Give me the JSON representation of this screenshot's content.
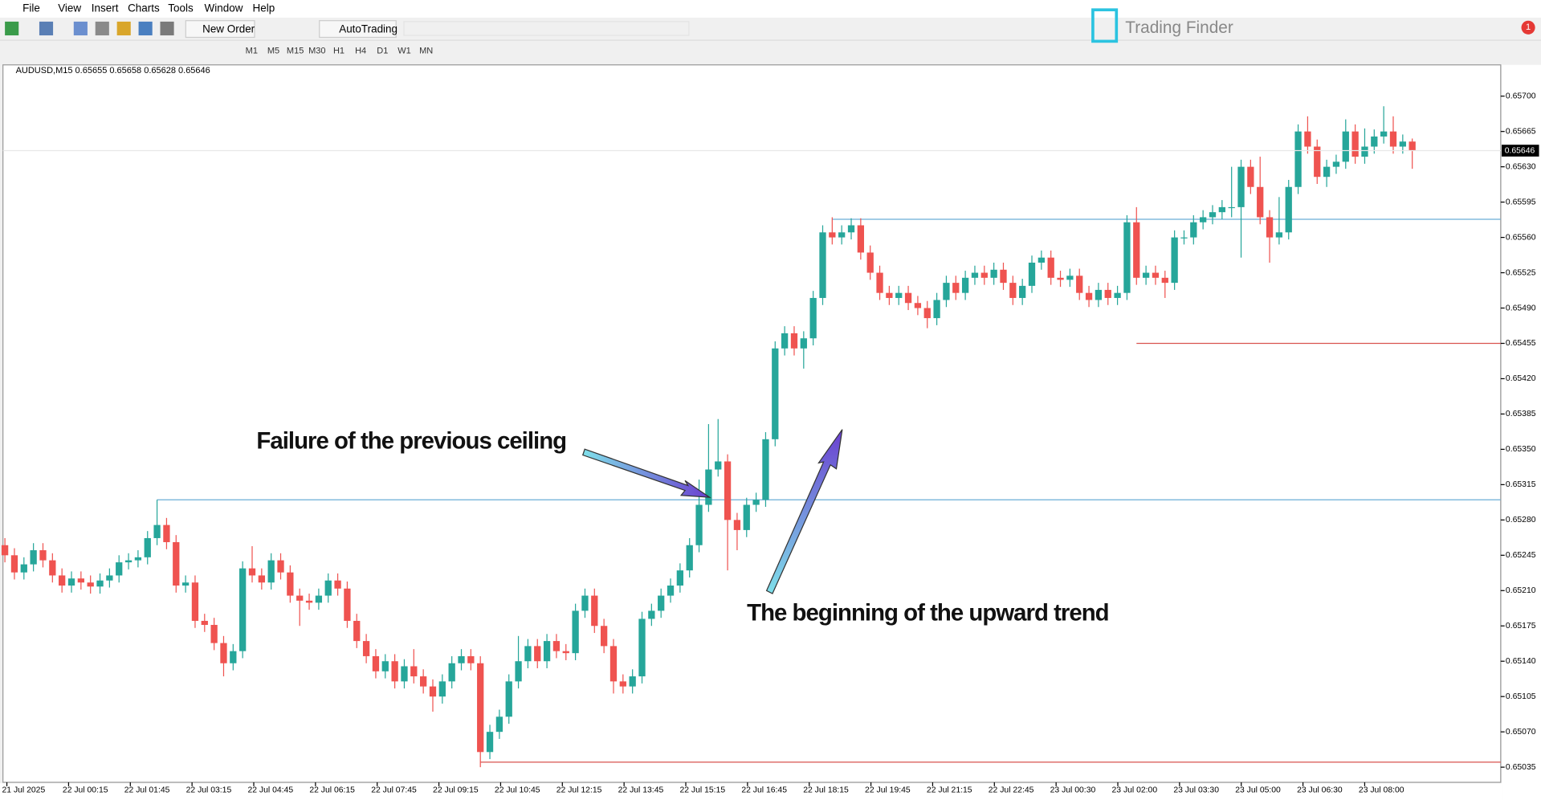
{
  "ui": {
    "menu": [
      "File",
      "View",
      "Insert",
      "Charts",
      "Tools",
      "Window",
      "Help"
    ],
    "toolbar": [
      "New Order",
      "AutoTrading"
    ],
    "timeframes": [
      "M1",
      "M5",
      "M15",
      "M30",
      "H1",
      "H4",
      "D1",
      "W1",
      "MN"
    ],
    "logo": "Trading Finder",
    "badge": "1"
  },
  "chart_data": {
    "type": "candlestick",
    "header": "AUDUSD,M15  0.65655 0.65658 0.65628 0.65646",
    "annotations": [
      "Failure of the previous ceiling",
      "The beginning of the upward trend"
    ],
    "colors": {
      "up": "#26a69a",
      "down": "#ef5350"
    },
    "open": [
      0.65255,
      0.65245,
      0.65228,
      0.65236,
      0.6525,
      0.6524,
      0.65225,
      0.65215,
      0.65222,
      0.65218,
      0.65214,
      0.6522,
      0.65225,
      0.65238,
      0.6524,
      0.65243,
      0.65262,
      0.65275,
      0.65258,
      0.65215,
      0.65218,
      0.6518,
      0.65176,
      0.65158,
      0.65138,
      0.6515,
      0.65232,
      0.65225,
      0.65218,
      0.6524,
      0.65228,
      0.65205,
      0.652,
      0.65198,
      0.65205,
      0.6522,
      0.65212,
      0.6518,
      0.6516,
      0.65145,
      0.6513,
      0.6514,
      0.6512,
      0.65135,
      0.65125,
      0.65115,
      0.65105,
      0.6512,
      0.65138,
      0.65145,
      0.65138,
      0.6505,
      0.6507,
      0.65085,
      0.6512,
      0.6514,
      0.65155,
      0.6514,
      0.6516,
      0.6515,
      0.65148,
      0.6519,
      0.65205,
      0.65175,
      0.65155,
      0.6512,
      0.65115,
      0.65125,
      0.65182,
      0.6519,
      0.65205,
      0.65215,
      0.6523,
      0.65255,
      0.65295,
      0.6533,
      0.65338,
      0.6528,
      0.6527,
      0.65295,
      0.653,
      0.6536,
      0.6545,
      0.65465,
      0.6545,
      0.6546,
      0.655,
      0.65565,
      0.6556,
      0.65565,
      0.65572,
      0.65545,
      0.65525,
      0.65505,
      0.655,
      0.65505,
      0.65495,
      0.6549,
      0.6548,
      0.65498,
      0.65515,
      0.65505,
      0.6552,
      0.65525,
      0.6552,
      0.65528,
      0.65515,
      0.655,
      0.65512,
      0.65535,
      0.6554,
      0.6552,
      0.65518,
      0.65522,
      0.65505,
      0.65498,
      0.65508,
      0.655,
      0.65505,
      0.65575,
      0.6552,
      0.65525,
      0.6552,
      0.65515,
      0.6556,
      0.6556,
      0.65575,
      0.6558,
      0.65585,
      0.6559,
      0.6559,
      0.6563,
      0.6561,
      0.6558,
      0.6556,
      0.65565,
      0.6561,
      0.65665,
      0.6565,
      0.6562,
      0.6563,
      0.65635,
      0.65665,
      0.6564,
      0.6565,
      0.6566,
      0.65665,
      0.6565,
      0.65655
    ],
    "high": [
      0.65262,
      0.65252,
      0.65243,
      0.65257,
      0.65257,
      0.65247,
      0.65232,
      0.65229,
      0.65229,
      0.65225,
      0.65227,
      0.65232,
      0.65245,
      0.65247,
      0.6525,
      0.65269,
      0.653,
      0.65282,
      0.65265,
      0.65225,
      0.65225,
      0.65187,
      0.65183,
      0.65165,
      0.65157,
      0.65239,
      0.65254,
      0.65232,
      0.65247,
      0.65247,
      0.65235,
      0.65212,
      0.65207,
      0.65212,
      0.65227,
      0.65227,
      0.65219,
      0.65187,
      0.65167,
      0.65152,
      0.65147,
      0.65147,
      0.65142,
      0.65152,
      0.65132,
      0.65122,
      0.65127,
      0.65145,
      0.65152,
      0.65152,
      0.65145,
      0.65077,
      0.65092,
      0.65127,
      0.65165,
      0.65162,
      0.65162,
      0.65167,
      0.65167,
      0.65157,
      0.65197,
      0.65212,
      0.65212,
      0.65182,
      0.65162,
      0.65127,
      0.65132,
      0.65189,
      0.65197,
      0.65212,
      0.65222,
      0.65237,
      0.65262,
      0.6532,
      0.65375,
      0.6538,
      0.65345,
      0.65287,
      0.65302,
      0.65307,
      0.65367,
      0.65457,
      0.65472,
      0.65472,
      0.65467,
      0.65507,
      0.65572,
      0.6558,
      0.65572,
      0.65579,
      0.65579,
      0.65552,
      0.65532,
      0.65512,
      0.65512,
      0.65512,
      0.65502,
      0.65497,
      0.65505,
      0.65522,
      0.65522,
      0.65527,
      0.65532,
      0.65532,
      0.65535,
      0.65535,
      0.65522,
      0.65519,
      0.65542,
      0.65547,
      0.65547,
      0.65527,
      0.65529,
      0.65529,
      0.65512,
      0.65515,
      0.65515,
      0.65512,
      0.65582,
      0.6559,
      0.65532,
      0.65532,
      0.65527,
      0.65567,
      0.65567,
      0.65582,
      0.65587,
      0.65592,
      0.65597,
      0.6563,
      0.65637,
      0.65637,
      0.6564,
      0.65587,
      0.656,
      0.65617,
      0.65672,
      0.6568,
      0.65657,
      0.65637,
      0.65642,
      0.65677,
      0.65672,
      0.65668,
      0.65667,
      0.6569,
      0.6568,
      0.65662,
      0.65658
    ],
    "low": [
      0.65238,
      0.65221,
      0.65221,
      0.65229,
      0.65233,
      0.65218,
      0.65208,
      0.65208,
      0.65211,
      0.65207,
      0.65207,
      0.65213,
      0.65218,
      0.65231,
      0.65233,
      0.65236,
      0.65255,
      0.65251,
      0.65208,
      0.65208,
      0.65173,
      0.65169,
      0.65151,
      0.65125,
      0.65131,
      0.65143,
      0.65218,
      0.65211,
      0.65211,
      0.65221,
      0.65198,
      0.65175,
      0.65191,
      0.65191,
      0.65198,
      0.65205,
      0.65173,
      0.65153,
      0.65138,
      0.65123,
      0.65123,
      0.65113,
      0.65113,
      0.65118,
      0.65108,
      0.6509,
      0.65098,
      0.65113,
      0.65131,
      0.65131,
      0.65035,
      0.65043,
      0.65063,
      0.65078,
      0.65113,
      0.65133,
      0.65133,
      0.65133,
      0.65143,
      0.65141,
      0.65141,
      0.65183,
      0.65168,
      0.65148,
      0.65108,
      0.65108,
      0.65108,
      0.65118,
      0.65175,
      0.65183,
      0.65198,
      0.65208,
      0.65223,
      0.65248,
      0.65288,
      0.65323,
      0.6523,
      0.6525,
      0.65263,
      0.65288,
      0.65293,
      0.65353,
      0.65443,
      0.65443,
      0.6543,
      0.65453,
      0.65493,
      0.65553,
      0.65553,
      0.65558,
      0.65538,
      0.65518,
      0.65498,
      0.65493,
      0.65493,
      0.65488,
      0.65483,
      0.6547,
      0.65473,
      0.65491,
      0.65498,
      0.65498,
      0.65513,
      0.65513,
      0.65513,
      0.65508,
      0.65493,
      0.65493,
      0.65505,
      0.65528,
      0.65513,
      0.65511,
      0.65511,
      0.65498,
      0.65491,
      0.65491,
      0.65493,
      0.65493,
      0.65498,
      0.65513,
      0.65513,
      0.65513,
      0.655,
      0.65508,
      0.65553,
      0.65553,
      0.65568,
      0.65573,
      0.65578,
      0.6558,
      0.6554,
      0.65603,
      0.65573,
      0.65535,
      0.65553,
      0.65558,
      0.65603,
      0.65643,
      0.65613,
      0.6561,
      0.65623,
      0.65628,
      0.65633,
      0.65633,
      0.65643,
      0.65653,
      0.65643,
      0.65643,
      0.65628
    ],
    "close": [
      0.65245,
      0.65228,
      0.65236,
      0.6525,
      0.6524,
      0.65225,
      0.65215,
      0.65222,
      0.65218,
      0.65214,
      0.6522,
      0.65225,
      0.65238,
      0.6524,
      0.65243,
      0.65262,
      0.65275,
      0.65258,
      0.65215,
      0.65218,
      0.6518,
      0.65176,
      0.65158,
      0.65138,
      0.6515,
      0.65232,
      0.65225,
      0.65218,
      0.6524,
      0.65228,
      0.65205,
      0.652,
      0.65198,
      0.65205,
      0.6522,
      0.65212,
      0.6518,
      0.6516,
      0.65145,
      0.6513,
      0.6514,
      0.6512,
      0.65135,
      0.65125,
      0.65115,
      0.65105,
      0.6512,
      0.65138,
      0.65145,
      0.65138,
      0.6505,
      0.6507,
      0.65085,
      0.6512,
      0.6514,
      0.65155,
      0.6514,
      0.6516,
      0.6515,
      0.65148,
      0.6519,
      0.65205,
      0.65175,
      0.65155,
      0.6512,
      0.65115,
      0.65125,
      0.65182,
      0.6519,
      0.65205,
      0.65215,
      0.6523,
      0.65255,
      0.65295,
      0.6533,
      0.65338,
      0.6528,
      0.6527,
      0.65295,
      0.653,
      0.6536,
      0.6545,
      0.65465,
      0.6545,
      0.6546,
      0.655,
      0.65565,
      0.6556,
      0.65565,
      0.65572,
      0.65545,
      0.65525,
      0.65505,
      0.655,
      0.65505,
      0.65495,
      0.6549,
      0.6548,
      0.65498,
      0.65515,
      0.65505,
      0.6552,
      0.65525,
      0.6552,
      0.65528,
      0.65515,
      0.655,
      0.65512,
      0.65535,
      0.6554,
      0.6552,
      0.65518,
      0.65522,
      0.65505,
      0.65498,
      0.65508,
      0.655,
      0.65505,
      0.65575,
      0.6552,
      0.65525,
      0.6552,
      0.65515,
      0.6556,
      0.6556,
      0.65575,
      0.6558,
      0.65585,
      0.6559,
      0.6559,
      0.6563,
      0.6561,
      0.6558,
      0.6556,
      0.65565,
      0.6561,
      0.65665,
      0.6565,
      0.6562,
      0.6563,
      0.65635,
      0.65665,
      0.6564,
      0.6565,
      0.6566,
      0.65665,
      0.6565,
      0.65655,
      0.65646
    ],
    "levels": [
      {
        "value": 0.653,
        "color": "#6aaed6",
        "start": 16
      },
      {
        "value": 0.65578,
        "color": "#6aaed6",
        "start": 87
      },
      {
        "value": 0.65455,
        "color": "#d9534f",
        "start": 119
      },
      {
        "value": 0.6504,
        "color": "#d9534f",
        "start": 50
      }
    ],
    "current_price": 0.65646,
    "current_price_label": "0.65646",
    "xticks": [
      "21 Jul 2025",
      "22 Jul 00:15",
      "22 Jul 01:45",
      "22 Jul 03:15",
      "22 Jul 04:45",
      "22 Jul 06:15",
      "22 Jul 07:45",
      "22 Jul 09:15",
      "22 Jul 10:45",
      "22 Jul 12:15",
      "22 Jul 13:45",
      "22 Jul 15:15",
      "22 Jul 16:45",
      "22 Jul 18:15",
      "22 Jul 19:45",
      "22 Jul 21:15",
      "22 Jul 22:45",
      "23 Jul 00:30",
      "23 Jul 02:00",
      "23 Jul 03:30",
      "23 Jul 05:00",
      "23 Jul 06:30",
      "23 Jul 08:00"
    ],
    "ylim": [
      0.6502,
      0.65731
    ],
    "yticks": [
      {
        "value": 0.657,
        "label": "0.65700"
      },
      {
        "value": 0.65665,
        "label": "0.65665"
      },
      {
        "value": 0.6563,
        "label": "0.65630"
      },
      {
        "value": 0.65595,
        "label": "0.65595"
      },
      {
        "value": 0.6556,
        "label": "0.65560"
      },
      {
        "value": 0.65525,
        "label": "0.65525"
      },
      {
        "value": 0.6549,
        "label": "0.65490"
      },
      {
        "value": 0.65455,
        "label": "0.65455"
      },
      {
        "value": 0.6542,
        "label": "0.65420"
      },
      {
        "value": 0.65385,
        "label": "0.65385"
      },
      {
        "value": 0.6535,
        "label": "0.65350"
      },
      {
        "value": 0.65315,
        "label": "0.65315"
      },
      {
        "value": 0.6528,
        "label": "0.65280"
      },
      {
        "value": 0.65245,
        "label": "0.65245"
      },
      {
        "value": 0.6521,
        "label": "0.65210"
      },
      {
        "value": 0.65175,
        "label": "0.65175"
      },
      {
        "value": 0.6514,
        "label": "0.65140"
      },
      {
        "value": 0.65105,
        "label": "0.65105"
      },
      {
        "value": 0.6507,
        "label": "0.65070"
      },
      {
        "value": 0.65035,
        "label": "0.65035"
      }
    ]
  }
}
